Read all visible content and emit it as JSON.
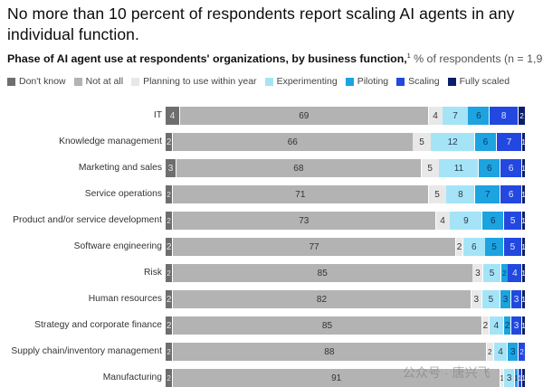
{
  "title": "No more than 10 percent of respondents report scaling AI agents in any individual function.",
  "subtitle": {
    "bold": "Phase of AI agent use at respondents' organizations, by business function,",
    "footnote_mark": "1",
    "light": " % of respondents (n = 1,933)"
  },
  "watermark": "公众号 · 唐兴飞",
  "chart_data": {
    "type": "bar",
    "orientation": "horizontal",
    "stacked": true,
    "title": "No more than 10 percent of respondents report scaling AI agents in any individual function.",
    "subtitle": "Phase of AI agent use at respondents' organizations, by business function, % of respondents (n = 1,933)",
    "xlabel": "",
    "ylabel": "",
    "xlim": [
      0,
      100
    ],
    "legend_position": "top-left",
    "grid": false,
    "categories": [
      "IT",
      "Knowledge management",
      "Marketing and sales",
      "Service operations",
      "Product and/or service development",
      "Software engineering",
      "Risk",
      "Human resources",
      "Strategy and corporate finance",
      "Supply chain/inventory management",
      "Manufacturing"
    ],
    "series": [
      {
        "name": "Don't know",
        "color": "#6e6e6e",
        "text_color": "#e6e6e6",
        "values": [
          4,
          2,
          3,
          2,
          2,
          2,
          2,
          2,
          2,
          2,
          2
        ]
      },
      {
        "name": "Not at all",
        "color": "#b3b3b3",
        "text_color": "#333333",
        "values": [
          69,
          66,
          68,
          71,
          73,
          77,
          85,
          82,
          85,
          88,
          91
        ]
      },
      {
        "name": "Planning to use within year",
        "color": "#e8e8e8",
        "text_color": "#333333",
        "values": [
          4,
          5,
          5,
          5,
          4,
          2,
          3,
          3,
          2,
          2,
          1
        ]
      },
      {
        "name": "Experimenting",
        "color": "#a5e4f7",
        "text_color": "#2a3a4a",
        "values": [
          7,
          12,
          11,
          8,
          9,
          6,
          5,
          5,
          4,
          4,
          3
        ]
      },
      {
        "name": "Piloting",
        "color": "#1ca3e0",
        "text_color": "#0d3a66",
        "values": [
          6,
          6,
          6,
          7,
          6,
          5,
          2,
          3,
          2,
          3,
          1
        ]
      },
      {
        "name": "Scaling",
        "color": "#2348e0",
        "text_color": "#dfe6ff",
        "values": [
          8,
          7,
          6,
          6,
          5,
          5,
          4,
          3,
          3,
          2,
          1
        ]
      },
      {
        "name": "Fully scaled",
        "color": "#0b1d6b",
        "text_color": "#ffffff",
        "values": [
          2,
          1,
          1,
          1,
          1,
          1,
          1,
          1,
          1,
          0,
          1
        ]
      }
    ]
  }
}
